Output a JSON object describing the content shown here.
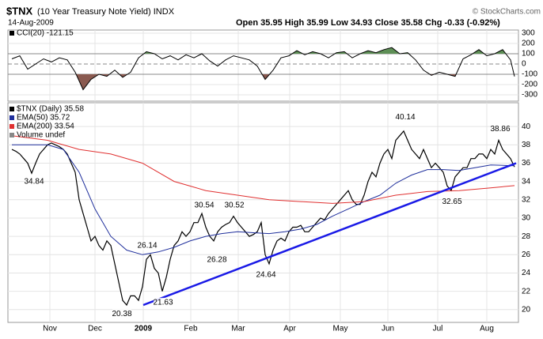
{
  "chart_data": {
    "type": "stock",
    "title": "$TNX",
    "subtitle": "(10 Year Treasury Note Yield) INDX",
    "date": "14-Aug-2009",
    "quote": "Open 35.95  High 35.99  Low 34.93  Close 35.58  Chg -0.33 (-0.92%)",
    "credit": "© StockCharts.com",
    "xlim": [
      -1,
      128
    ],
    "xticks": [
      {
        "value": 9.6,
        "label": "Nov"
      },
      {
        "value": 21,
        "label": "Dec"
      },
      {
        "value": 33.2,
        "label": "2009"
      },
      {
        "value": 45.2,
        "label": "Feb"
      },
      {
        "value": 57.2,
        "label": "Mar"
      },
      {
        "value": 70.2,
        "label": "Apr"
      },
      {
        "value": 83,
        "label": "May"
      },
      {
        "value": 95,
        "label": "Jun"
      },
      {
        "value": 107.6,
        "label": "Jul"
      },
      {
        "value": 120,
        "label": "Aug"
      }
    ],
    "ylim": [
      18.6,
      42.6
    ],
    "yticks": [
      20,
      22,
      24,
      26,
      28,
      30,
      32,
      34,
      36,
      38,
      40
    ],
    "y2lim": [
      -362,
      331
    ],
    "y2ticks": [
      300,
      200,
      100,
      0,
      -100,
      -200,
      -300
    ],
    "grid": true,
    "series": [
      {
        "name": "$TNX (Daily) 35.58",
        "color": "#000000",
        "x": [
          0,
          1,
          2,
          3,
          4,
          5,
          6,
          7,
          8,
          9,
          10,
          11,
          12,
          13,
          14,
          15,
          16,
          17,
          18,
          19,
          20,
          21,
          22,
          23,
          24,
          25,
          26,
          27,
          28,
          29,
          30,
          31,
          32,
          33,
          34,
          35,
          36,
          37,
          38,
          39,
          40,
          41,
          42,
          43,
          44,
          45,
          46,
          47,
          48,
          49,
          50,
          51,
          52,
          53,
          54,
          55,
          56,
          57,
          58,
          59,
          60,
          61,
          62,
          63,
          64,
          65,
          66,
          67,
          68,
          69,
          70,
          71,
          72,
          73,
          74,
          75,
          76,
          77,
          78,
          79,
          80,
          81,
          82,
          83,
          84,
          85,
          86,
          87,
          88,
          89,
          90,
          91,
          92,
          93,
          94,
          95,
          96,
          97,
          98,
          99,
          100,
          101,
          102,
          103,
          104,
          105,
          106,
          107,
          108,
          109,
          110,
          111,
          112,
          113,
          114,
          115,
          116,
          117,
          118,
          119,
          120,
          121,
          122,
          123,
          124,
          125,
          126,
          127
        ],
        "values": [
          37.5,
          37.3,
          37,
          36.5,
          36,
          34.9,
          36,
          37,
          37.5,
          38,
          38.2,
          38,
          37.8,
          37.5,
          37,
          36,
          35,
          32,
          30.5,
          29,
          27.5,
          28,
          27,
          26.5,
          27.5,
          27,
          25,
          23,
          21,
          20.5,
          21.5,
          21.5,
          21,
          22.5,
          25.5,
          26,
          24.5,
          24,
          22,
          23.5,
          25.5,
          27,
          27.5,
          28.5,
          28,
          28.5,
          29.5,
          29.5,
          30.5,
          29,
          28,
          27.5,
          28.5,
          29,
          29.3,
          29.5,
          30.2,
          29.5,
          29,
          28.5,
          28,
          28.2,
          28.5,
          29.5,
          26,
          25,
          26.5,
          27.5,
          27.8,
          27.5,
          28.5,
          29,
          29,
          29.2,
          28.5,
          28.5,
          29,
          29.5,
          30,
          29.8,
          30.5,
          31,
          31.5,
          32,
          32.5,
          33,
          32,
          31.5,
          31.5,
          32.5,
          34,
          35,
          34.5,
          36,
          37,
          37.5,
          36.5,
          38.5,
          39,
          39.5,
          38.5,
          37.5,
          37,
          36.5,
          37.5,
          36.5,
          35.5,
          36,
          35.5,
          35,
          33.5,
          33,
          34.5,
          35,
          35.5,
          35.5,
          36.5,
          36.5,
          37,
          37,
          36.5,
          37.5,
          37,
          38.5,
          37.5,
          37,
          36.5,
          35.58
        ]
      },
      {
        "name": "EMA(50) 35.72",
        "color": "#1f2f9c",
        "x": [
          0,
          9,
          13,
          17,
          21,
          25,
          29,
          33,
          37,
          41,
          45,
          49,
          53,
          57,
          61,
          65,
          69,
          73,
          77,
          81,
          85,
          89,
          93,
          97,
          101,
          105,
          109,
          113,
          117,
          121,
          127
        ],
        "values": [
          38,
          38,
          37.5,
          35,
          31,
          28,
          26.5,
          26,
          26.3,
          26.8,
          27.5,
          28,
          28.3,
          28.5,
          28.4,
          28.3,
          28.5,
          28.8,
          29.3,
          30.2,
          31,
          31.8,
          32.5,
          33.8,
          34.7,
          35.3,
          35.3,
          35.2,
          35.5,
          35.8,
          35.72
        ]
      },
      {
        "name": "EMA(200) 33.54",
        "color": "#e03030",
        "x": [
          0,
          9,
          17,
          25,
          33,
          41,
          45,
          49,
          57,
          65,
          73,
          81,
          89,
          97,
          105,
          113,
          121,
          127
        ],
        "values": [
          39,
          38.5,
          37.5,
          37,
          36,
          34,
          33.5,
          33,
          32.5,
          32,
          31.8,
          31.6,
          31.8,
          32.5,
          32.9,
          33,
          33.3,
          33.54
        ]
      },
      {
        "name": "Volume undef",
        "color": "#888888",
        "x": [],
        "values": []
      },
      {
        "name": "CCI(20) -121.15",
        "color": "#000000",
        "axis": "y2",
        "x": [
          0,
          2,
          4,
          6,
          8,
          10,
          12,
          14,
          16,
          18,
          20,
          22,
          24,
          26,
          28,
          30,
          32,
          34,
          36,
          38,
          40,
          42,
          44,
          46,
          48,
          50,
          52,
          54,
          56,
          58,
          60,
          62,
          64,
          66,
          68,
          70,
          72,
          74,
          76,
          78,
          80,
          82,
          84,
          86,
          88,
          90,
          92,
          94,
          96,
          98,
          100,
          102,
          104,
          106,
          108,
          110,
          112,
          114,
          116,
          118,
          120,
          122,
          124,
          126,
          127
        ],
        "values": [
          50,
          80,
          -50,
          0,
          50,
          20,
          60,
          40,
          -80,
          -250,
          -150,
          -100,
          -120,
          -60,
          -130,
          -80,
          60,
          120,
          100,
          50,
          80,
          40,
          90,
          60,
          100,
          30,
          -20,
          40,
          80,
          60,
          40,
          -20,
          -150,
          -60,
          60,
          80,
          130,
          90,
          120,
          100,
          60,
          110,
          120,
          60,
          100,
          130,
          110,
          140,
          160,
          100,
          110,
          40,
          -60,
          -110,
          -80,
          -100,
          -120,
          50,
          90,
          140,
          80,
          100,
          140,
          40,
          -121.15
        ]
      }
    ],
    "trendline": {
      "color": "#1a1ae6",
      "x": [
        33.2,
        127.4
      ],
      "values": [
        20.5,
        36
      ]
    },
    "annotations": {
      "x": [
        5.6,
        48.6,
        56.2,
        99.4,
        123.4,
        34.2,
        51.8,
        64.2,
        27.8,
        38.2,
        111.2
      ],
      "values": [
        34.84,
        30.54,
        30.52,
        40.14,
        38.86,
        26.14,
        26.28,
        24.64,
        20.38,
        21.63,
        32.65
      ]
    }
  }
}
